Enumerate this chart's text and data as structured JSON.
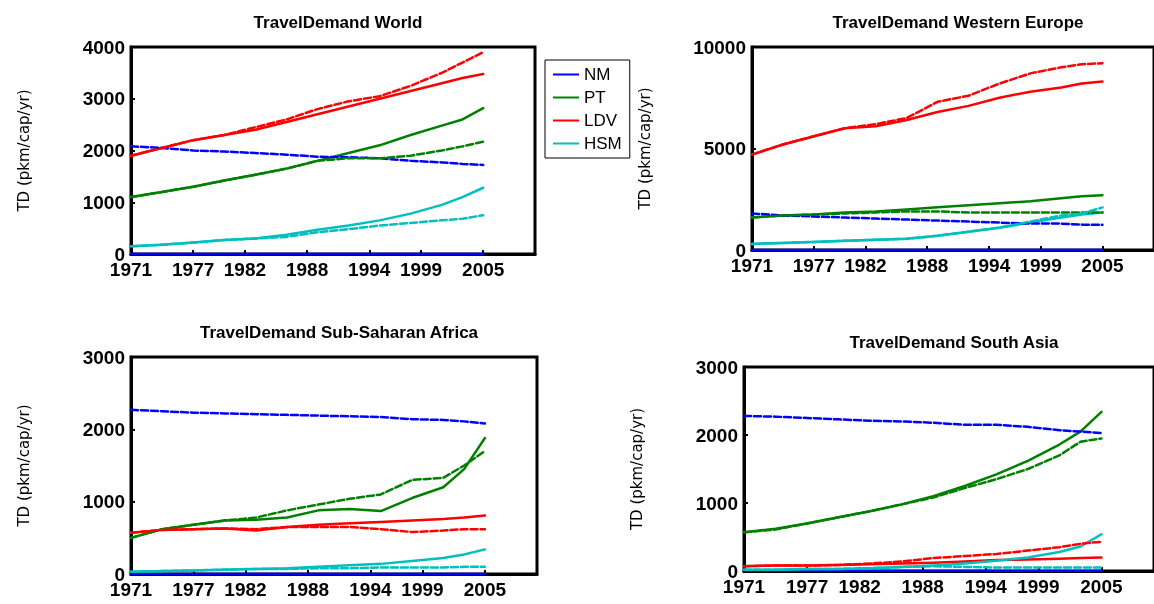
{
  "chart_data": [
    {
      "type": "line",
      "title": "TravelDemand World",
      "ylabel": "TD (pkm/cap/yr)",
      "x": [
        1971,
        1974,
        1977,
        1980,
        1983,
        1986,
        1989,
        1992,
        1995,
        1998,
        2001,
        2003,
        2005
      ],
      "xlim": [
        1971,
        2010
      ],
      "xticks": [
        1971,
        1977,
        1982,
        1988,
        1994,
        1999,
        2005
      ],
      "ylim": [
        0,
        4000
      ],
      "yticks": [
        0,
        1000,
        2000,
        3000,
        4000
      ],
      "grid": false,
      "legend": "right",
      "marker": "none",
      "series": [
        {
          "name": "NM",
          "color": "#0000ff",
          "line_style": "solid",
          "values": [
            0,
            0,
            0,
            0,
            0,
            0,
            0,
            0,
            0,
            0,
            0,
            0,
            0
          ]
        },
        {
          "name": "PT",
          "color": "#008000",
          "line_style": "solid",
          "values": [
            1100,
            1200,
            1300,
            1420,
            1530,
            1650,
            1800,
            1950,
            2100,
            2300,
            2480,
            2600,
            2820
          ]
        },
        {
          "name": "LDV",
          "color": "#ff0000",
          "line_style": "solid",
          "values": [
            1900,
            2050,
            2200,
            2300,
            2400,
            2550,
            2700,
            2850,
            3000,
            3150,
            3300,
            3400,
            3480
          ]
        },
        {
          "name": "HSM",
          "color": "#00bfbf",
          "line_style": "solid",
          "values": [
            150,
            180,
            220,
            270,
            300,
            370,
            470,
            550,
            650,
            780,
            950,
            1100,
            1280
          ]
        },
        {
          "color": "#0000ff",
          "line_style": "dashed",
          "values": [
            2080,
            2050,
            2000,
            1980,
            1950,
            1920,
            1880,
            1870,
            1850,
            1800,
            1770,
            1740,
            1720
          ]
        },
        {
          "color": "#008000",
          "line_style": "dashed",
          "values": [
            1100,
            1200,
            1300,
            1420,
            1530,
            1650,
            1800,
            1850,
            1850,
            1900,
            2000,
            2080,
            2170
          ]
        },
        {
          "color": "#ff0000",
          "line_style": "dashed",
          "values": [
            1900,
            2050,
            2200,
            2300,
            2450,
            2600,
            2800,
            2950,
            3050,
            3250,
            3500,
            3700,
            3900
          ]
        },
        {
          "color": "#00bfbf",
          "line_style": "dashed",
          "values": [
            150,
            180,
            220,
            270,
            300,
            330,
            420,
            480,
            550,
            600,
            650,
            680,
            750
          ]
        }
      ]
    },
    {
      "type": "line",
      "title": "TravelDemand Western Europe",
      "ylabel": "TD (pkm/cap/yr)",
      "x": [
        1971,
        1974,
        1977,
        1980,
        1983,
        1986,
        1989,
        1992,
        1995,
        1998,
        2001,
        2003,
        2005
      ],
      "xlim": [
        1971,
        2010
      ],
      "xticks": [
        1971,
        1977,
        1982,
        1988,
        1994,
        1999,
        2005
      ],
      "ylim": [
        0,
        10000
      ],
      "yticks": [
        0,
        5000,
        10000
      ],
      "grid": false,
      "legend": false,
      "marker": "none",
      "series": [
        {
          "color": "#0000ff",
          "line_style": "solid",
          "values": [
            0,
            0,
            0,
            0,
            0,
            0,
            0,
            0,
            0,
            0,
            0,
            0,
            0
          ]
        },
        {
          "color": "#008000",
          "line_style": "solid",
          "values": [
            1600,
            1700,
            1750,
            1850,
            1900,
            2000,
            2100,
            2200,
            2300,
            2400,
            2550,
            2650,
            2700
          ]
        },
        {
          "color": "#ff0000",
          "line_style": "solid",
          "values": [
            4700,
            5200,
            5600,
            6000,
            6100,
            6400,
            6800,
            7100,
            7500,
            7800,
            8000,
            8200,
            8300
          ]
        },
        {
          "color": "#00bfbf",
          "line_style": "solid",
          "values": [
            300,
            350,
            400,
            450,
            500,
            550,
            700,
            900,
            1100,
            1350,
            1600,
            1750,
            1850
          ]
        },
        {
          "color": "#0000ff",
          "line_style": "dashed",
          "values": [
            1800,
            1700,
            1650,
            1600,
            1550,
            1500,
            1450,
            1400,
            1350,
            1300,
            1300,
            1250,
            1250
          ]
        },
        {
          "color": "#008000",
          "line_style": "dashed",
          "values": [
            1600,
            1700,
            1750,
            1800,
            1850,
            1900,
            1900,
            1850,
            1850,
            1850,
            1850,
            1850,
            1850
          ]
        },
        {
          "color": "#ff0000",
          "line_style": "dashed",
          "values": [
            4700,
            5200,
            5600,
            6000,
            6200,
            6500,
            7300,
            7600,
            8200,
            8700,
            9000,
            9150,
            9200
          ]
        },
        {
          "color": "#00bfbf",
          "line_style": "dashed",
          "values": [
            300,
            350,
            400,
            450,
            500,
            550,
            700,
            900,
            1100,
            1400,
            1700,
            1800,
            2100
          ]
        }
      ]
    },
    {
      "type": "line",
      "title": "TravelDemand Sub-Saharan Africa",
      "ylabel": "TD (pkm/cap/yr)",
      "x": [
        1971,
        1974,
        1977,
        1980,
        1983,
        1986,
        1989,
        1992,
        1995,
        1998,
        2001,
        2003,
        2005
      ],
      "xlim": [
        1971,
        2010
      ],
      "xticks": [
        1971,
        1977,
        1982,
        1988,
        1994,
        1999,
        2005
      ],
      "ylim": [
        0,
        3000
      ],
      "yticks": [
        0,
        1000,
        2000,
        3000
      ],
      "grid": false,
      "legend": false,
      "marker": "none",
      "series": [
        {
          "color": "#0000ff",
          "line_style": "solid",
          "values": [
            0,
            0,
            0,
            0,
            0,
            0,
            0,
            0,
            0,
            0,
            0,
            0,
            0
          ]
        },
        {
          "color": "#008000",
          "line_style": "solid",
          "values": [
            500,
            620,
            680,
            740,
            750,
            780,
            880,
            900,
            870,
            1050,
            1200,
            1450,
            1880
          ]
        },
        {
          "color": "#ff0000",
          "line_style": "solid",
          "values": [
            570,
            610,
            620,
            630,
            600,
            650,
            680,
            700,
            720,
            740,
            760,
            780,
            810
          ]
        },
        {
          "color": "#00bfbf",
          "line_style": "solid",
          "values": [
            30,
            40,
            50,
            60,
            70,
            80,
            100,
            120,
            140,
            180,
            220,
            270,
            340
          ]
        },
        {
          "color": "#0000ff",
          "line_style": "dashed",
          "values": [
            2270,
            2250,
            2230,
            2220,
            2210,
            2200,
            2190,
            2180,
            2170,
            2140,
            2130,
            2110,
            2080
          ]
        },
        {
          "color": "#008000",
          "line_style": "dashed",
          "values": [
            500,
            620,
            680,
            740,
            780,
            880,
            960,
            1040,
            1100,
            1300,
            1330,
            1500,
            1700
          ]
        },
        {
          "color": "#ff0000",
          "line_style": "dashed",
          "values": [
            570,
            610,
            620,
            630,
            620,
            650,
            650,
            650,
            620,
            580,
            600,
            620,
            620
          ]
        },
        {
          "color": "#00bfbf",
          "line_style": "dashed",
          "values": [
            30,
            40,
            50,
            60,
            70,
            70,
            80,
            80,
            90,
            90,
            90,
            100,
            100
          ]
        }
      ]
    },
    {
      "type": "line",
      "title": "TravelDemand South Asia",
      "ylabel": "TD (pkm/cap/yr)",
      "x": [
        1971,
        1974,
        1977,
        1980,
        1983,
        1986,
        1989,
        1992,
        1995,
        1998,
        2001,
        2003,
        2005
      ],
      "xlim": [
        1971,
        2010
      ],
      "xticks": [
        1971,
        1977,
        1982,
        1988,
        1994,
        1999,
        2005
      ],
      "ylim": [
        0,
        3000
      ],
      "yticks": [
        0,
        1000,
        2000,
        3000
      ],
      "grid": false,
      "legend": false,
      "marker": "none",
      "series": [
        {
          "color": "#0000ff",
          "line_style": "solid",
          "values": [
            0,
            0,
            0,
            0,
            0,
            0,
            0,
            0,
            0,
            0,
            0,
            0,
            0
          ]
        },
        {
          "color": "#008000",
          "line_style": "solid",
          "values": [
            570,
            620,
            700,
            790,
            880,
            980,
            1100,
            1250,
            1420,
            1620,
            1860,
            2050,
            2340
          ]
        },
        {
          "color": "#ff0000",
          "line_style": "solid",
          "values": [
            70,
            80,
            80,
            90,
            100,
            110,
            120,
            140,
            160,
            170,
            180,
            190,
            200
          ]
        },
        {
          "color": "#00bfbf",
          "line_style": "solid",
          "values": [
            20,
            20,
            30,
            30,
            40,
            60,
            80,
            110,
            150,
            200,
            280,
            360,
            540
          ]
        },
        {
          "color": "#0000ff",
          "line_style": "dashed",
          "values": [
            2280,
            2270,
            2250,
            2230,
            2210,
            2200,
            2180,
            2150,
            2150,
            2120,
            2070,
            2050,
            2030
          ]
        },
        {
          "color": "#008000",
          "line_style": "dashed",
          "values": [
            570,
            610,
            700,
            790,
            880,
            980,
            1080,
            1220,
            1350,
            1500,
            1700,
            1900,
            1950
          ]
        },
        {
          "color": "#ff0000",
          "line_style": "dashed",
          "values": [
            70,
            80,
            80,
            90,
            110,
            140,
            190,
            220,
            250,
            300,
            350,
            400,
            430
          ]
        },
        {
          "color": "#00bfbf",
          "line_style": "dashed",
          "values": [
            20,
            20,
            30,
            30,
            40,
            60,
            70,
            60,
            50,
            50,
            50,
            50,
            50
          ]
        }
      ]
    }
  ]
}
